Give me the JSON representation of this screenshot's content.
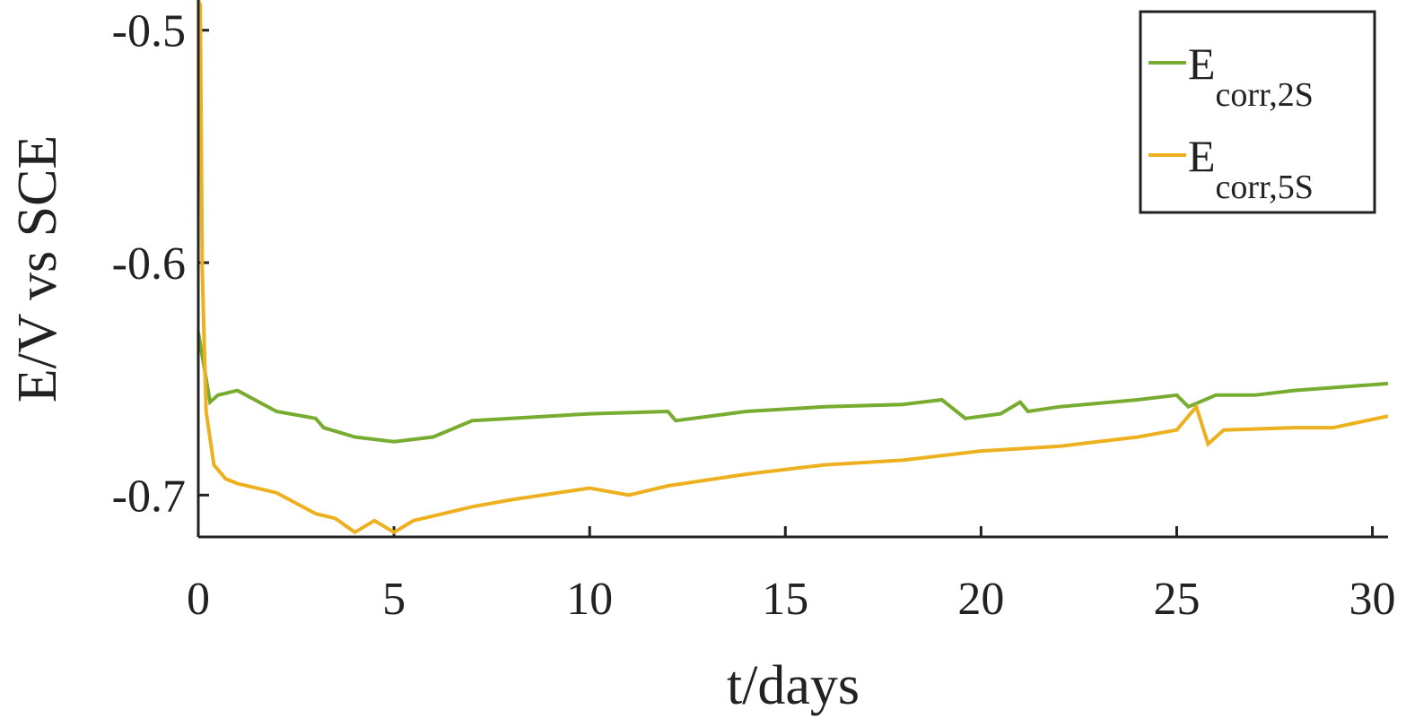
{
  "chart_data": {
    "type": "line",
    "xlabel": "t/days",
    "ylabel": "E/V vs SCE",
    "xlim": [
      0,
      30.4
    ],
    "ylim": [
      -0.718,
      -0.487
    ],
    "xticks": [
      0,
      5,
      10,
      15,
      20,
      25,
      30
    ],
    "yticks": [
      -0.5,
      -0.6,
      -0.7
    ],
    "legend": "upper right",
    "series": [
      {
        "name": "E",
        "subscript": "corr,2S",
        "color": "#77ac30",
        "x": [
          0,
          0.3,
          0.5,
          1,
          2,
          3,
          3.2,
          4,
          5,
          6,
          7,
          8,
          10,
          12,
          12.2,
          14,
          16,
          18,
          19,
          19.6,
          20.5,
          21,
          21.2,
          22,
          24,
          25,
          25.3,
          26,
          27,
          28,
          30.4
        ],
        "values": [
          -0.63,
          -0.66,
          -0.657,
          -0.655,
          -0.664,
          -0.667,
          -0.671,
          -0.675,
          -0.677,
          -0.675,
          -0.668,
          -0.667,
          -0.665,
          -0.664,
          -0.668,
          -0.664,
          -0.662,
          -0.661,
          -0.659,
          -0.667,
          -0.665,
          -0.66,
          -0.664,
          -0.662,
          -0.659,
          -0.657,
          -0.662,
          -0.657,
          -0.657,
          -0.655,
          -0.652
        ]
      },
      {
        "name": "E",
        "subscript": "corr,5S",
        "color": "#edb120",
        "x": [
          0,
          0.05,
          0.1,
          0.2,
          0.4,
          0.7,
          1,
          2,
          3,
          3.5,
          4,
          4.5,
          5,
          5.5,
          6,
          7,
          8,
          10,
          11,
          12,
          14,
          16,
          18,
          20,
          22,
          24,
          25,
          25.5,
          25.8,
          26.2,
          28,
          29,
          30.4
        ],
        "values": [
          -0.487,
          -0.489,
          -0.603,
          -0.664,
          -0.687,
          -0.693,
          -0.695,
          -0.699,
          -0.708,
          -0.71,
          -0.716,
          -0.711,
          -0.716,
          -0.711,
          -0.709,
          -0.705,
          -0.702,
          -0.697,
          -0.7,
          -0.696,
          -0.691,
          -0.687,
          -0.685,
          -0.681,
          -0.679,
          -0.675,
          -0.672,
          -0.662,
          -0.678,
          -0.672,
          -0.671,
          -0.671,
          -0.666
        ]
      }
    ]
  }
}
